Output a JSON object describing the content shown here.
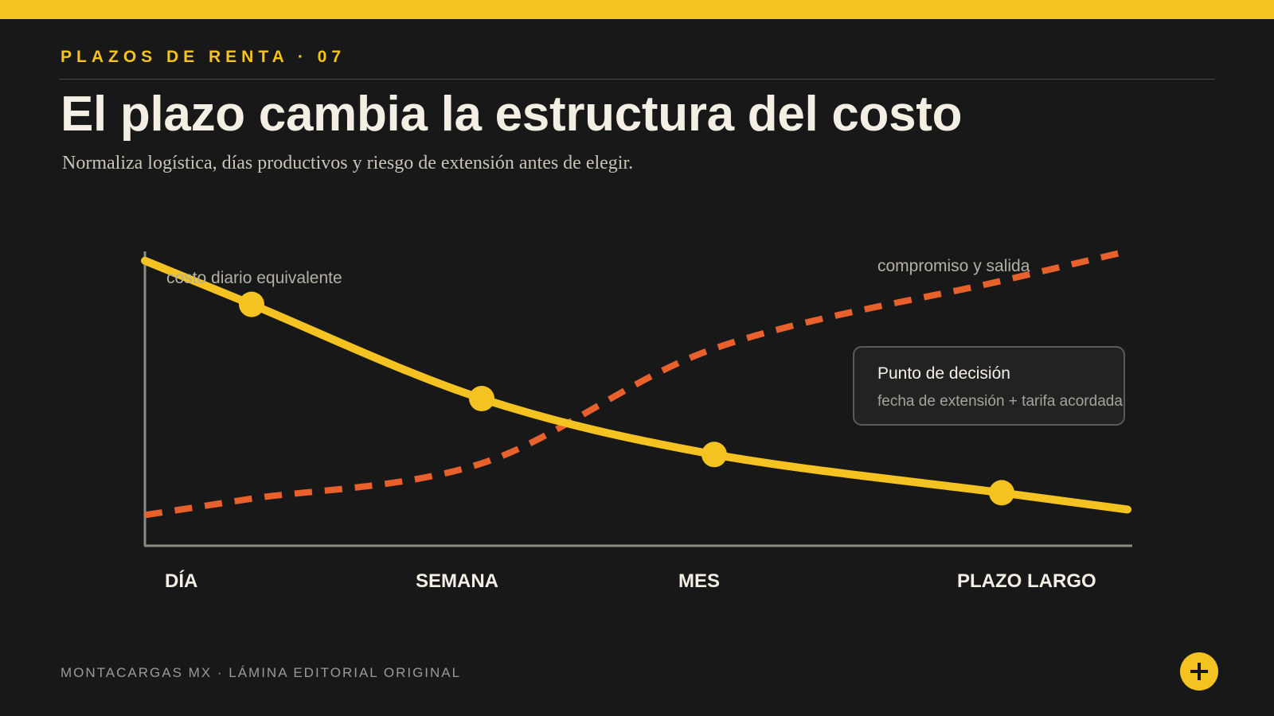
{
  "header": {
    "kicker": "PLAZOS DE RENTA · 07",
    "title": "El plazo cambia la estructura del costo",
    "subtitle": "Normaliza logística, días productivos y riesgo de extensión antes de elegir."
  },
  "chart_data": {
    "type": "line",
    "categories": [
      "DÍA",
      "SEMANA",
      "MES",
      "PLAZO LARGO"
    ],
    "series": [
      {
        "name": "costo diario equivalente",
        "color": "#f4c321",
        "style": "solid",
        "markers": true,
        "values": [
          0.82,
          0.5,
          0.31,
          0.18
        ]
      },
      {
        "name": "compromiso y salida",
        "color": "#e8612c",
        "style": "dashed",
        "markers": false,
        "values": [
          0.16,
          0.28,
          0.67,
          0.9
        ]
      }
    ],
    "annotation": {
      "title": "Punto de decisión",
      "text": "fecha de extensión + tarifa acordada"
    },
    "grid": false,
    "ylabel": ""
  },
  "footer": {
    "text": "MONTACARGAS MX · LÁMINA EDITORIAL ORIGINAL"
  },
  "fab": {
    "icon": "plus-icon"
  },
  "colors": {
    "accent": "#f4c321",
    "secondary": "#e8612c",
    "background": "#181818",
    "axis": "#8a8a82"
  }
}
